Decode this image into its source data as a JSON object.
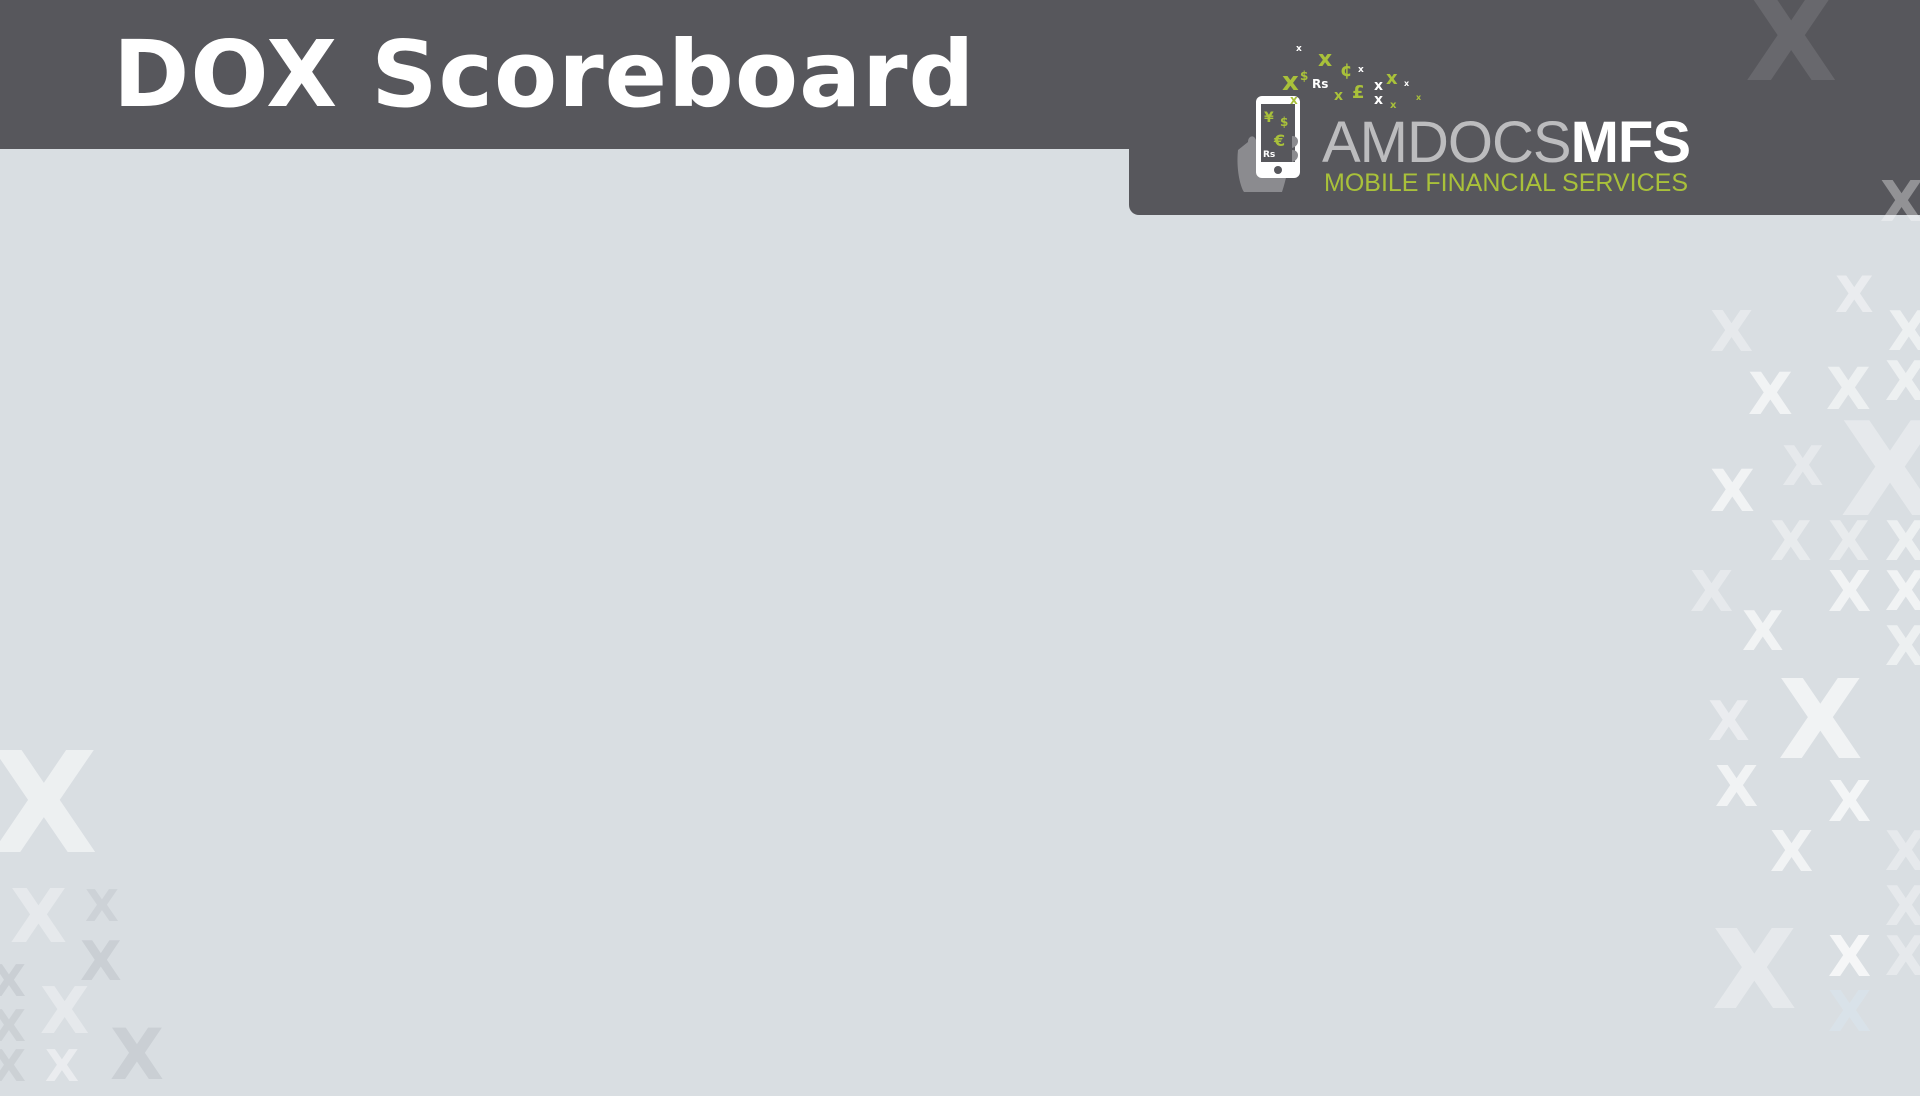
{
  "slide": {
    "title": "DOX Scoreboard",
    "colors": {
      "header": "#57575c",
      "background": "#d9dee2",
      "brand_green": "#a9c13a",
      "title_text": "#ffffff"
    }
  },
  "logo": {
    "brand_main": "AMDOCS",
    "brand_strong": "MFS",
    "tagline": "MOBILE FINANCIAL SERVICES",
    "icon": "phone-in-hand-with-currency-icon",
    "currency_symbols": [
      "¥",
      "$",
      "€",
      "Rs",
      "£",
      "¢",
      "x"
    ]
  },
  "decoration": {
    "pattern": "x-pattern",
    "glyph": "X"
  }
}
